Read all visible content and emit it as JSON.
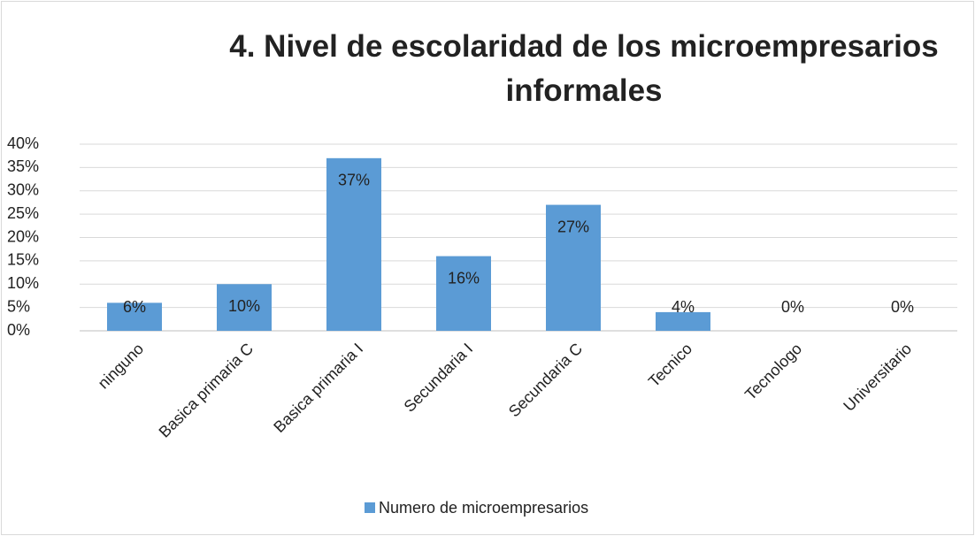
{
  "chart_data": {
    "type": "bar",
    "title": "4.  Nivel de escolaridad de los microempresarios informales",
    "categories": [
      "ninguno",
      "Basica primaria C",
      "Basica primaria I",
      "Secundaria I",
      "Secundaria C",
      "Tecnico",
      "Tecnologo",
      "Universitario"
    ],
    "series": [
      {
        "name": "Numero de microempresarios",
        "color": "#5b9bd5",
        "values": [
          6,
          10,
          37,
          16,
          27,
          4,
          0,
          0
        ],
        "value_labels": [
          "6%",
          "10%",
          "37%",
          "16%",
          "27%",
          "4%",
          "0%",
          "0%"
        ]
      }
    ],
    "ylim": [
      0,
      40
    ],
    "yticks": [
      {
        "value": 0,
        "label": "0%"
      },
      {
        "value": 5,
        "label": "5%"
      },
      {
        "value": 10,
        "label": "10%"
      },
      {
        "value": 15,
        "label": "15%"
      },
      {
        "value": 20,
        "label": "20%"
      },
      {
        "value": 25,
        "label": "25%"
      },
      {
        "value": 30,
        "label": "30%"
      },
      {
        "value": 35,
        "label": "35%"
      },
      {
        "value": 40,
        "label": "40%"
      }
    ],
    "grid": true,
    "legend": "bottom"
  }
}
